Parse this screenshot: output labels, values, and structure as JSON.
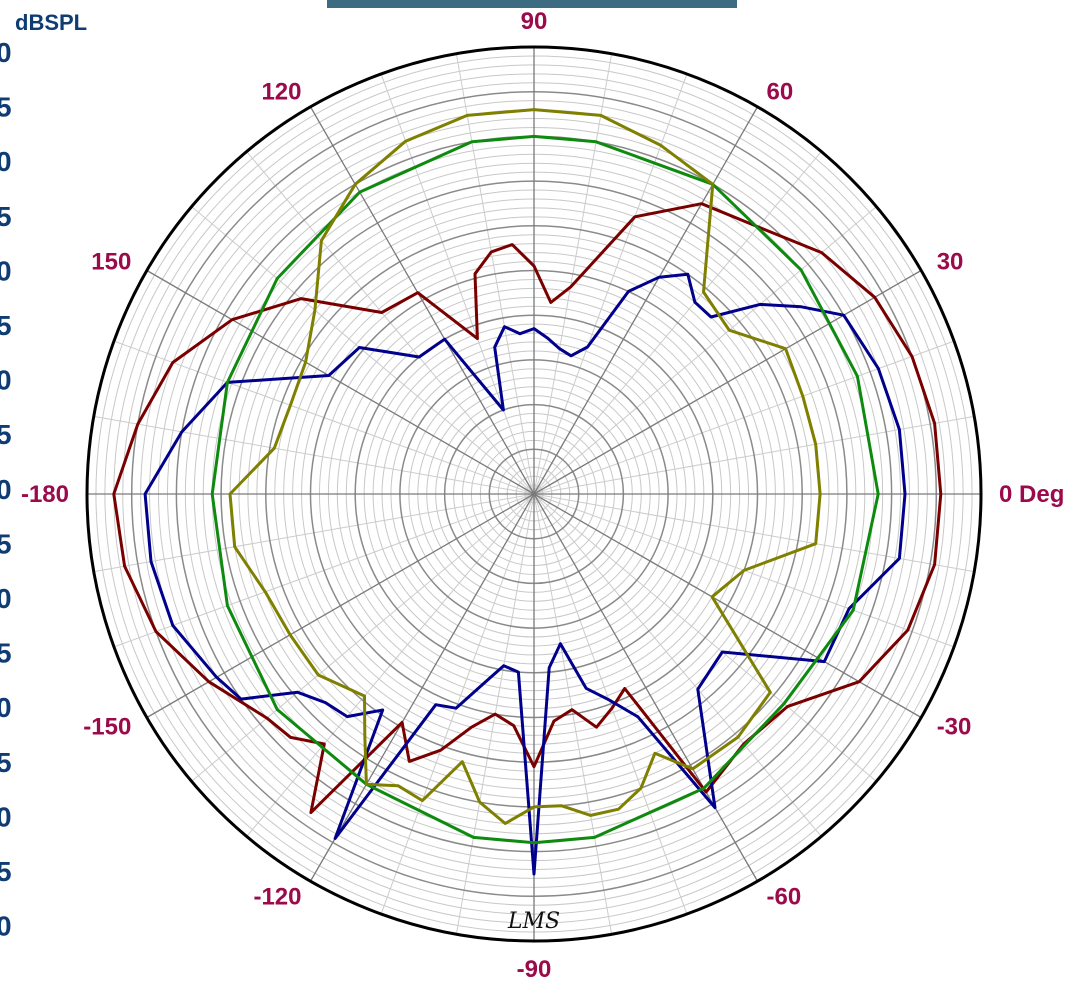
{
  "chart_data": {
    "type": "polar",
    "unit_label": "dBSPL",
    "angle_labels": [
      "0 Deg",
      "30",
      "60",
      "90",
      "120",
      "150",
      "-180",
      "-150",
      "-120",
      "-90",
      "-60",
      "-30"
    ],
    "angle_tick_values": [
      0,
      30,
      60,
      90,
      120,
      150,
      180,
      -150,
      -120,
      -90,
      -60,
      -30
    ],
    "r_range": [
      0,
      100
    ],
    "rings_major": [
      10,
      20,
      30,
      40,
      50,
      60,
      70,
      80,
      90,
      100
    ],
    "rings_minor_step": 2,
    "spokes_major_step_deg": 30,
    "spokes_minor_step_deg": 10,
    "grid": true,
    "left_axis_ticks": [
      "0",
      "5",
      "0",
      "5",
      "0",
      "5",
      "0",
      "5",
      "0",
      "5",
      "0",
      "5",
      "0",
      "5",
      "0",
      "5",
      "0"
    ],
    "series": [
      {
        "color": "#7a0000",
        "points": [
          [
            0,
            91
          ],
          [
            10,
            91
          ],
          [
            20,
            90
          ],
          [
            30,
            88
          ],
          [
            40,
            84
          ],
          [
            50,
            78
          ],
          [
            60,
            75
          ],
          [
            70,
            66
          ],
          [
            80,
            47
          ],
          [
            85,
            43
          ],
          [
            90,
            51
          ],
          [
            95,
            56
          ],
          [
            100,
            55
          ],
          [
            105,
            51
          ],
          [
            110,
            37
          ],
          [
            120,
            52
          ],
          [
            130,
            53
          ],
          [
            140,
            68
          ],
          [
            150,
            78
          ],
          [
            160,
            86
          ],
          [
            170,
            90
          ],
          [
            180,
            94
          ],
          [
            190,
            93
          ],
          [
            200,
            90
          ],
          [
            210,
            84
          ],
          [
            220,
            78
          ],
          [
            225,
            77
          ],
          [
            230,
            73
          ],
          [
            235,
            87
          ],
          [
            240,
            59
          ],
          [
            245,
            66
          ],
          [
            250,
            61
          ],
          [
            255,
            54
          ],
          [
            260,
            50
          ],
          [
            265,
            52
          ],
          [
            270,
            61
          ],
          [
            275,
            51
          ],
          [
            280,
            49
          ],
          [
            285,
            54
          ],
          [
            290,
            51
          ],
          [
            295,
            48
          ],
          [
            300,
            77
          ],
          [
            310,
            73
          ],
          [
            320,
            74
          ],
          [
            330,
            84
          ],
          [
            340,
            89
          ],
          [
            350,
            91
          ]
        ]
      },
      {
        "color": "#00008c",
        "points": [
          [
            0,
            83
          ],
          [
            10,
            83
          ],
          [
            20,
            82
          ],
          [
            30,
            80
          ],
          [
            35,
            73
          ],
          [
            40,
            66
          ],
          [
            45,
            56
          ],
          [
            50,
            56
          ],
          [
            55,
            60
          ],
          [
            60,
            56
          ],
          [
            65,
            50
          ],
          [
            70,
            35
          ],
          [
            75,
            32
          ],
          [
            80,
            33
          ],
          [
            85,
            35
          ],
          [
            90,
            37
          ],
          [
            95,
            36
          ],
          [
            100,
            38
          ],
          [
            105,
            34
          ],
          [
            110,
            20
          ],
          [
            120,
            40
          ],
          [
            130,
            40
          ],
          [
            140,
            51
          ],
          [
            150,
            53
          ],
          [
            160,
            73
          ],
          [
            170,
            80
          ],
          [
            180,
            87
          ],
          [
            190,
            87
          ],
          [
            200,
            86
          ],
          [
            210,
            82
          ],
          [
            215,
            80
          ],
          [
            220,
            69
          ],
          [
            225,
            66
          ],
          [
            230,
            65
          ],
          [
            235,
            59
          ],
          [
            240,
            89
          ],
          [
            245,
            52
          ],
          [
            250,
            51
          ],
          [
            255,
            44
          ],
          [
            260,
            39
          ],
          [
            265,
            40
          ],
          [
            270,
            85
          ],
          [
            275,
            39
          ],
          [
            280,
            34
          ],
          [
            285,
            45
          ],
          [
            290,
            49
          ],
          [
            295,
            55
          ],
          [
            300,
            81
          ],
          [
            310,
            57
          ],
          [
            320,
            55
          ],
          [
            330,
            75
          ],
          [
            340,
            75
          ],
          [
            350,
            83
          ]
        ]
      },
      {
        "color": "#0e8a0e",
        "points": [
          [
            0,
            77
          ],
          [
            20,
            77
          ],
          [
            40,
            78
          ],
          [
            60,
            80
          ],
          [
            80,
            80
          ],
          [
            90,
            80
          ],
          [
            100,
            80
          ],
          [
            120,
            78
          ],
          [
            140,
            75
          ],
          [
            160,
            73
          ],
          [
            180,
            72
          ],
          [
            200,
            73
          ],
          [
            220,
            75
          ],
          [
            240,
            75
          ],
          [
            260,
            78
          ],
          [
            270,
            78
          ],
          [
            280,
            78
          ],
          [
            300,
            76
          ],
          [
            320,
            73
          ],
          [
            340,
            76
          ],
          [
            360,
            77
          ]
        ]
      },
      {
        "color": "#7f7f00",
        "points": [
          [
            0,
            64
          ],
          [
            10,
            64
          ],
          [
            20,
            64
          ],
          [
            30,
            65
          ],
          [
            40,
            57
          ],
          [
            50,
            59
          ],
          [
            60,
            80
          ],
          [
            70,
            83
          ],
          [
            80,
            86
          ],
          [
            90,
            86
          ],
          [
            100,
            86
          ],
          [
            110,
            84
          ],
          [
            120,
            80
          ],
          [
            130,
            74
          ],
          [
            140,
            64
          ],
          [
            150,
            59
          ],
          [
            160,
            58
          ],
          [
            170,
            59
          ],
          [
            180,
            68
          ],
          [
            190,
            68
          ],
          [
            200,
            64
          ],
          [
            210,
            63
          ],
          [
            220,
            63
          ],
          [
            230,
            59
          ],
          [
            235,
            66
          ],
          [
            240,
            75
          ],
          [
            245,
            72
          ],
          [
            250,
            73
          ],
          [
            255,
            62
          ],
          [
            260,
            70
          ],
          [
            265,
            74
          ],
          [
            270,
            70
          ],
          [
            275,
            70
          ],
          [
            280,
            73
          ],
          [
            285,
            73
          ],
          [
            290,
            70
          ],
          [
            295,
            64
          ],
          [
            300,
            71
          ],
          [
            310,
            71
          ],
          [
            320,
            69
          ],
          [
            330,
            46
          ],
          [
            340,
            50
          ],
          [
            350,
            64
          ]
        ]
      }
    ]
  },
  "logo_text": "LMS"
}
